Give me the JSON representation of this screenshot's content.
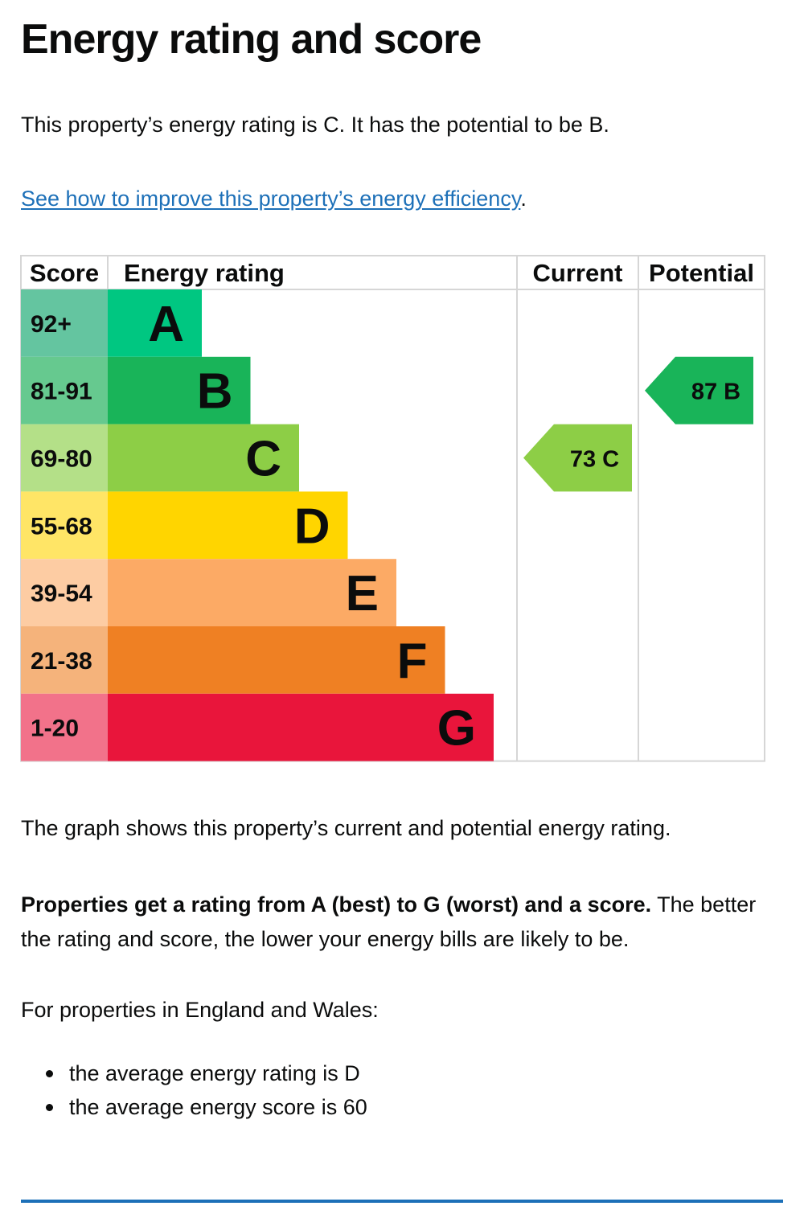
{
  "page": {
    "title": "Energy rating and score",
    "summary": "This property’s energy rating is C. It has the potential to be B.",
    "improve_link": "See how to improve this property’s energy efficiency",
    "improve_suffix": ".",
    "graph_note": "The graph shows this property’s current and potential energy rating.",
    "explain_bold": "Properties get a rating from A (best) to G (worst) and a score.",
    "explain_rest": " The better the rating and score, the lower your energy bills are likely to be.",
    "region_intro": "For properties in England and Wales:",
    "averages": [
      "the average energy rating is D",
      "the average energy score is 60"
    ],
    "link_color": "#1d70b8"
  },
  "chart_data": {
    "type": "bar",
    "headers": {
      "score": "Score",
      "rating": "Energy rating",
      "current": "Current",
      "potential": "Potential"
    },
    "bands": [
      {
        "letter": "A",
        "range": "92+",
        "color": "#00c781",
        "range_color": "#64c5a0"
      },
      {
        "letter": "B",
        "range": "81-91",
        "color": "#19b459",
        "range_color": "#66c98f"
      },
      {
        "letter": "C",
        "range": "69-80",
        "color": "#8dce46",
        "range_color": "#b4e088"
      },
      {
        "letter": "D",
        "range": "55-68",
        "color": "#ffd500",
        "range_color": "#ffe566"
      },
      {
        "letter": "E",
        "range": "39-54",
        "color": "#fcaa65",
        "range_color": "#fdcca3"
      },
      {
        "letter": "F",
        "range": "21-38",
        "color": "#ef8023",
        "range_color": "#f5b37b"
      },
      {
        "letter": "G",
        "range": "1-20",
        "color": "#e9153b",
        "range_color": "#f2728a"
      }
    ],
    "current": {
      "score": 73,
      "band": "C",
      "label": "73 C"
    },
    "potential": {
      "score": 87,
      "band": "B",
      "label": "87 B"
    }
  }
}
